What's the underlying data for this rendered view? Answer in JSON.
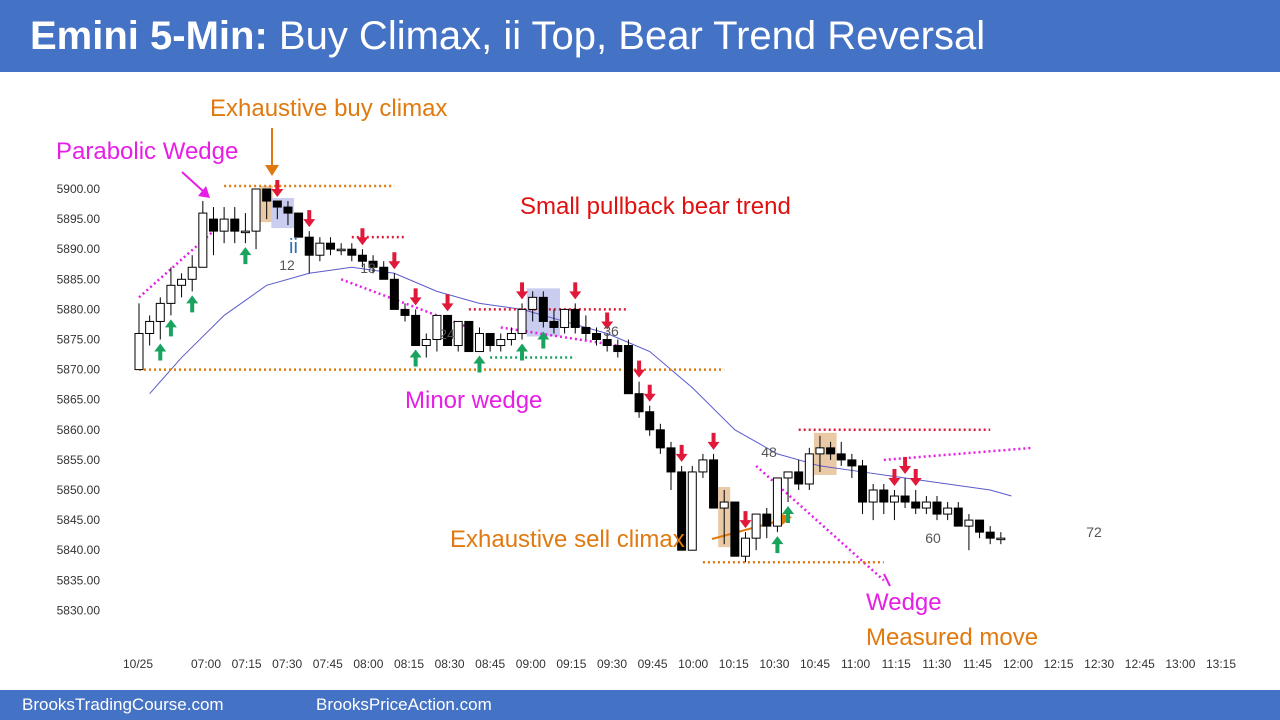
{
  "header": {
    "title_bold": "Emini 5-Min:",
    "title_rest": " Buy Climax, ii Top, Bear Trend Reversal",
    "background": "#4472c4"
  },
  "footer": {
    "left_text": "BrooksTradingCourse.com",
    "right_text": "BrooksPriceAction.com"
  },
  "colors": {
    "bull_arrow": "#1aa35f",
    "bear_arrow": "#e0193a",
    "magenta": "#e61ee6",
    "orange": "#e07a10",
    "red_text": "#e01010",
    "ema": "#5a5acc"
  },
  "chart_data": {
    "type": "candlestick",
    "ylim": [
      5826,
      5906
    ],
    "y_ticks": [
      "5900.00",
      "5895.00",
      "5890.00",
      "5885.00",
      "5880.00",
      "5875.00",
      "5870.00",
      "5865.00",
      "5860.00",
      "5855.00",
      "5850.00",
      "5845.00",
      "5840.00",
      "5835.00",
      "5830.00"
    ],
    "x_ticks": [
      "10/25",
      "07:00",
      "07:15",
      "07:30",
      "07:45",
      "08:00",
      "08:15",
      "08:30",
      "08:45",
      "09:00",
      "09:15",
      "09:30",
      "09:45",
      "10:00",
      "10:15",
      "10:30",
      "10:45",
      "11:00",
      "11:15",
      "11:30",
      "11:45",
      "12:00",
      "12:15",
      "12:30",
      "12:45",
      "13:00",
      "13:15"
    ],
    "bars_ohlc": [
      [
        5870,
        5881,
        5870,
        5876
      ],
      [
        5876,
        5879,
        5874,
        5878
      ],
      [
        5878,
        5882,
        5875,
        5881
      ],
      [
        5881,
        5887,
        5879,
        5884
      ],
      [
        5884,
        5886,
        5882,
        5885
      ],
      [
        5885,
        5889,
        5883,
        5887
      ],
      [
        5887,
        5898,
        5887,
        5896
      ],
      [
        5895,
        5897,
        5889,
        5893
      ],
      [
        5893,
        5897,
        5891,
        5895
      ],
      [
        5895,
        5897,
        5891,
        5893
      ],
      [
        5893,
        5896,
        5891,
        5893
      ],
      [
        5893,
        5900,
        5890,
        5900
      ],
      [
        5900,
        5900,
        5895,
        5898
      ],
      [
        5898,
        5898,
        5895,
        5897
      ],
      [
        5897,
        5898,
        5894,
        5896
      ],
      [
        5896,
        5896,
        5892,
        5892
      ],
      [
        5892,
        5893,
        5886,
        5889
      ],
      [
        5889,
        5892,
        5888,
        5891
      ],
      [
        5891,
        5892,
        5889,
        5890
      ],
      [
        5890,
        5891,
        5889,
        5890
      ],
      [
        5890,
        5891,
        5888,
        5889
      ],
      [
        5889,
        5890,
        5887,
        5888
      ],
      [
        5888,
        5889,
        5886,
        5887
      ],
      [
        5887,
        5888,
        5885,
        5885
      ],
      [
        5885,
        5886,
        5880,
        5880
      ],
      [
        5880,
        5881,
        5878,
        5879
      ],
      [
        5879,
        5880,
        5874,
        5874
      ],
      [
        5874,
        5876,
        5872,
        5875
      ],
      [
        5875,
        5879,
        5873,
        5879
      ],
      [
        5879,
        5879,
        5874,
        5874
      ],
      [
        5874,
        5878,
        5873,
        5878
      ],
      [
        5878,
        5878,
        5873,
        5873
      ],
      [
        5873,
        5877,
        5873,
        5876
      ],
      [
        5876,
        5876,
        5873,
        5874
      ],
      [
        5874,
        5876,
        5873,
        5875
      ],
      [
        5875,
        5877,
        5874,
        5876
      ],
      [
        5876,
        5881,
        5875,
        5880
      ],
      [
        5880,
        5883,
        5878,
        5882
      ],
      [
        5882,
        5883,
        5877,
        5878
      ],
      [
        5878,
        5880,
        5876,
        5877
      ],
      [
        5877,
        5880,
        5876,
        5880
      ],
      [
        5880,
        5881,
        5876,
        5877
      ],
      [
        5877,
        5879,
        5875,
        5876
      ],
      [
        5876,
        5877,
        5874,
        5875
      ],
      [
        5875,
        5876,
        5873,
        5874
      ],
      [
        5874,
        5875,
        5872,
        5873
      ],
      [
        5874,
        5875,
        5866,
        5866
      ],
      [
        5866,
        5868,
        5862,
        5863
      ],
      [
        5863,
        5864,
        5859,
        5860
      ],
      [
        5860,
        5861,
        5856,
        5857
      ],
      [
        5857,
        5858,
        5850,
        5853
      ],
      [
        5853,
        5854,
        5840,
        5840
      ],
      [
        5840,
        5854,
        5840,
        5853
      ],
      [
        5853,
        5856,
        5852,
        5855
      ],
      [
        5855,
        5856,
        5847,
        5847
      ],
      [
        5847,
        5850,
        5841,
        5848
      ],
      [
        5848,
        5848,
        5839,
        5839
      ],
      [
        5839,
        5843,
        5838,
        5842
      ],
      [
        5842,
        5846,
        5840,
        5846
      ],
      [
        5846,
        5847,
        5842,
        5844
      ],
      [
        5844,
        5852,
        5843,
        5852
      ],
      [
        5852,
        5853,
        5848,
        5853
      ],
      [
        5853,
        5855,
        5850,
        5851
      ],
      [
        5851,
        5857,
        5850,
        5856
      ],
      [
        5856,
        5859,
        5853,
        5857
      ],
      [
        5857,
        5858,
        5855,
        5856
      ],
      [
        5856,
        5858,
        5854,
        5855
      ],
      [
        5855,
        5856,
        5852,
        5854
      ],
      [
        5854,
        5855,
        5846,
        5848
      ],
      [
        5848,
        5851,
        5845,
        5850
      ],
      [
        5850,
        5851,
        5846,
        5848
      ],
      [
        5848,
        5850,
        5845,
        5849
      ],
      [
        5849,
        5852,
        5847,
        5848
      ],
      [
        5848,
        5850,
        5846,
        5847
      ],
      [
        5847,
        5849,
        5846,
        5848
      ],
      [
        5848,
        5849,
        5845,
        5846
      ],
      [
        5846,
        5848,
        5845,
        5847
      ],
      [
        5847,
        5848,
        5844,
        5844
      ],
      [
        5844,
        5846,
        5840,
        5845
      ],
      [
        5845,
        5845,
        5842,
        5843
      ],
      [
        5843,
        5844,
        5841,
        5842
      ],
      [
        5842,
        5843,
        5841,
        5842
      ]
    ],
    "ema": [
      [
        1,
        5866
      ],
      [
        4,
        5872
      ],
      [
        8,
        5879
      ],
      [
        12,
        5884
      ],
      [
        16,
        5886
      ],
      [
        20,
        5887
      ],
      [
        24,
        5886
      ],
      [
        28,
        5883
      ],
      [
        32,
        5881
      ],
      [
        36,
        5880
      ],
      [
        40,
        5878
      ],
      [
        44,
        5876
      ],
      [
        48,
        5873
      ],
      [
        52,
        5867
      ],
      [
        56,
        5860
      ],
      [
        60,
        5856
      ],
      [
        64,
        5854
      ],
      [
        68,
        5853
      ],
      [
        72,
        5852
      ],
      [
        76,
        5851
      ],
      [
        80,
        5850
      ],
      [
        82,
        5849
      ]
    ],
    "annotations": [
      {
        "text": "Exhaustive buy climax",
        "color": "orange"
      },
      {
        "text": "Parabolic Wedge",
        "color": "magenta"
      },
      {
        "text": "Small pullback bear trend",
        "color": "red"
      },
      {
        "text": "Minor wedge",
        "color": "magenta"
      },
      {
        "text": "Exhaustive sell climax",
        "color": "orange"
      },
      {
        "text": "Wedge",
        "color": "magenta"
      },
      {
        "text": "Measured move",
        "color": "orange"
      },
      {
        "text": "ii",
        "color": "blue"
      }
    ],
    "bar_numbers": [
      {
        "n": 12,
        "text": "12"
      },
      {
        "n": 18,
        "text": "18"
      },
      {
        "n": 24,
        "text": "24"
      },
      {
        "n": 36,
        "text": "36"
      },
      {
        "n": 48,
        "text": "48"
      },
      {
        "n": 60,
        "text": "60"
      },
      {
        "n": 72,
        "text": "72"
      }
    ],
    "bull_arrows": [
      2,
      3,
      5,
      10,
      26,
      32,
      36,
      38,
      60,
      61
    ],
    "bear_arrows": [
      13,
      16,
      21,
      24,
      26,
      29,
      36,
      41,
      44,
      47,
      48,
      51,
      54,
      57,
      71,
      72,
      73,
      82
    ]
  }
}
